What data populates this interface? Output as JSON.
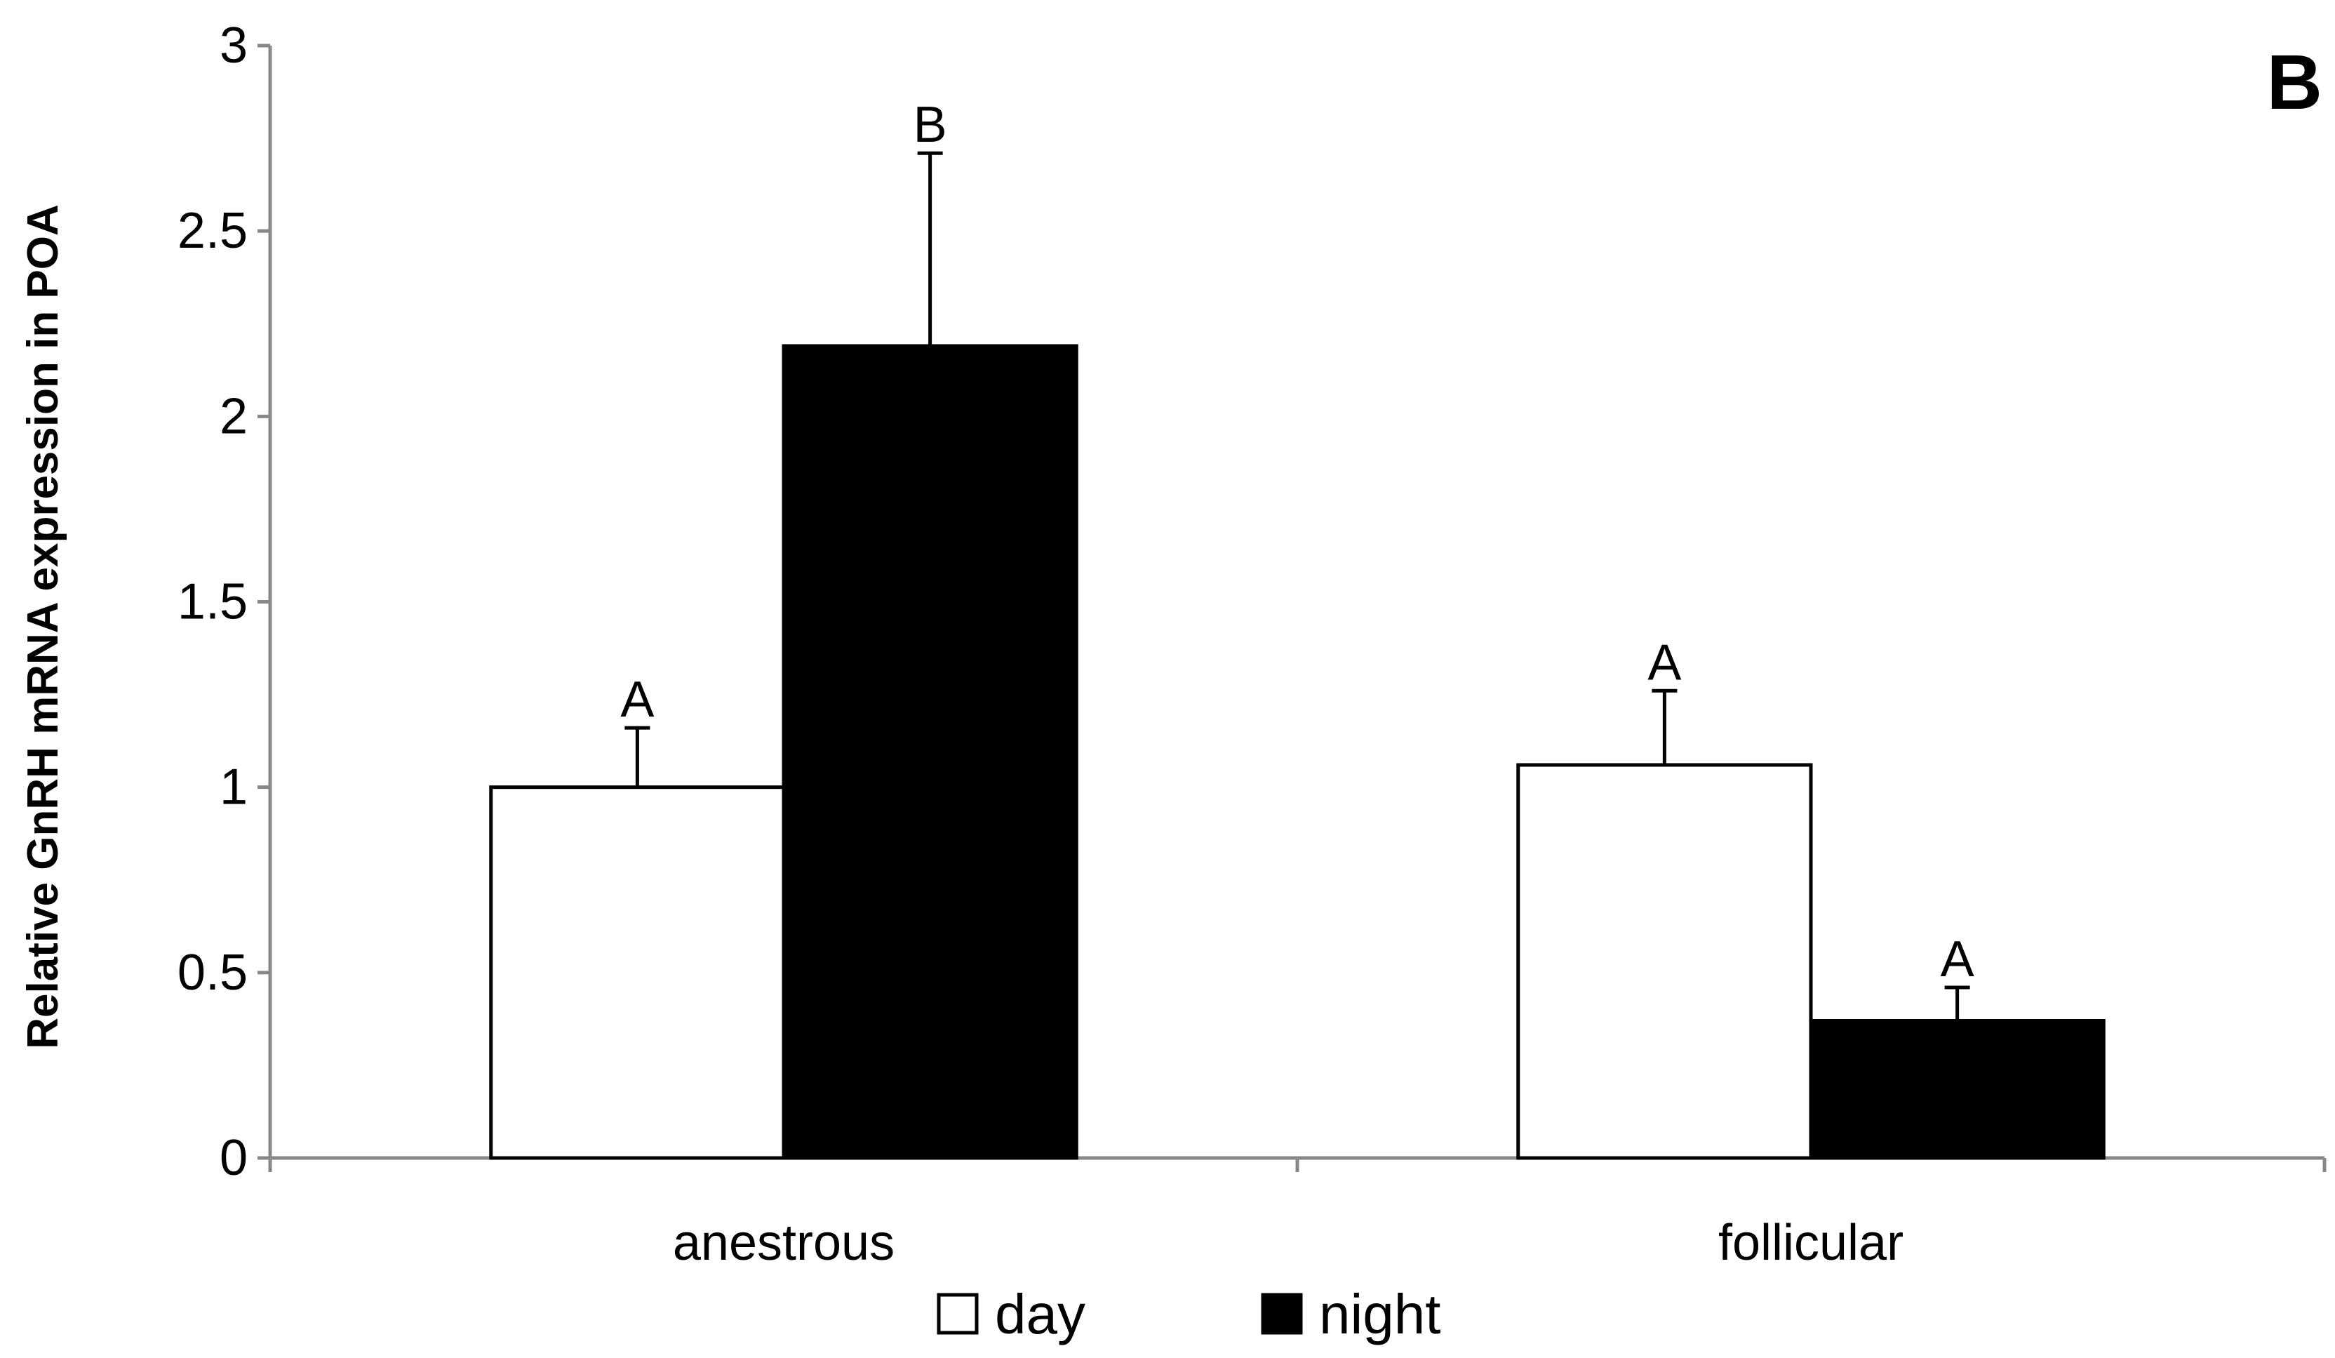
{
  "chart_data": {
    "type": "bar",
    "panel_label": "B",
    "ylabel": "Relative GnRH mRNA expression in POA",
    "xlabel": "",
    "ylim": [
      0,
      3
    ],
    "yticks": [
      "0",
      "0.5",
      "1",
      "1.5",
      "2",
      "2.5",
      "3"
    ],
    "categories": [
      "anestrous",
      "follicular"
    ],
    "series": [
      {
        "name": "day",
        "fill": "#ffffff",
        "values": [
          1.0,
          1.06
        ],
        "errors": [
          0.16,
          0.2
        ],
        "sig_letters": [
          "A",
          "A"
        ]
      },
      {
        "name": "night",
        "fill": "#000000",
        "values": [
          2.19,
          0.37
        ],
        "errors": [
          0.52,
          0.09
        ],
        "sig_letters": [
          "B",
          "A"
        ]
      }
    ],
    "grid": false,
    "legend_position": "bottom-center",
    "colors": {
      "axis": "#888888",
      "bar_edge": "#000000",
      "text": "#000000"
    }
  }
}
